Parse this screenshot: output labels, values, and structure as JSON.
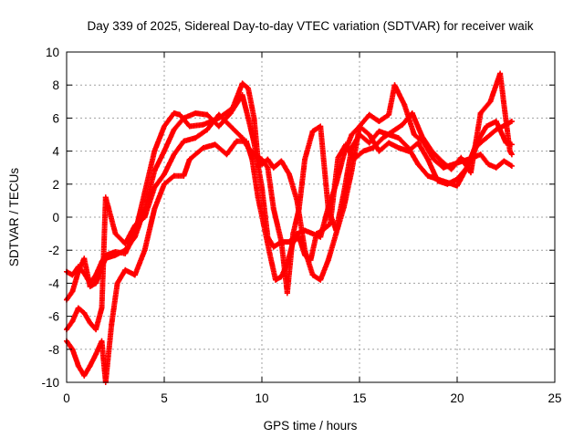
{
  "chart_data": {
    "type": "scatter",
    "title": "Day 339 of 2025, Sidereal Day-to-day VTEC variation (SDTVAR) for receiver waik",
    "xlabel": "GPS time / hours",
    "ylabel": "SDTVAR / TECUs",
    "xlim": [
      0,
      25
    ],
    "ylim": [
      -10,
      10
    ],
    "xticks": [
      "0",
      "5",
      "10",
      "15",
      "20",
      "25"
    ],
    "yticks": [
      "-10",
      "-8",
      "-6",
      "-4",
      "-2",
      "0",
      "2",
      "4",
      "6",
      "8",
      "10"
    ],
    "grid": true,
    "legend": "none",
    "marker": "plus",
    "color": "#ff0000",
    "series": [
      {
        "x": [
          0.0,
          0.3,
          0.6,
          0.9,
          1.2,
          1.5,
          1.8,
          2.0,
          2.5,
          3.0,
          3.5,
          4.0,
          4.5,
          5.0,
          5.5,
          5.8,
          6.3,
          7.0,
          7.8,
          8.5,
          9.0,
          9.3,
          9.6,
          9.8,
          10.0,
          10.3,
          10.6,
          11.0,
          11.4,
          11.8,
          12.2,
          12.6,
          13.0,
          13.4,
          13.8,
          14.2,
          14.6,
          15.0,
          15.5,
          16.0,
          16.5,
          16.8,
          17.3,
          17.8,
          18.3,
          18.8,
          19.3,
          19.8,
          20.3,
          20.8,
          21.2,
          21.6,
          22.0,
          22.4,
          22.8
        ],
        "y": [
          -3.3,
          -3.5,
          -3.0,
          -3.4,
          -4.0,
          -3.5,
          -2.7,
          -2.3,
          -2.1,
          -2.2,
          -1.0,
          1.5,
          4.0,
          5.5,
          6.3,
          6.2,
          5.5,
          5.6,
          6.0,
          6.6,
          8.1,
          7.8,
          6.0,
          3.5,
          3.2,
          3.5,
          3.0,
          3.4,
          2.6,
          1.0,
          -2.0,
          -3.5,
          -3.8,
          -2.6,
          -1.0,
          0.6,
          2.8,
          5.5,
          6.2,
          5.8,
          6.2,
          8.0,
          6.8,
          5.0,
          4.5,
          3.5,
          3.0,
          3.2,
          3.4,
          3.6,
          3.8,
          3.2,
          3.0,
          3.4,
          3.1
        ]
      },
      {
        "x": [
          0.0,
          0.3,
          0.6,
          0.9,
          1.2,
          1.5,
          1.8,
          2.0,
          2.5,
          3.0,
          3.5,
          4.0,
          4.5,
          5.0,
          5.5,
          6.0,
          6.6,
          7.2,
          7.8,
          8.4,
          9.0,
          9.3,
          9.6,
          10.0,
          10.3,
          10.6,
          11.0,
          11.4,
          11.8,
          12.2,
          12.6,
          13.0,
          13.4,
          13.8,
          14.2,
          14.6,
          15.0,
          15.5,
          16.0,
          16.5,
          17.0,
          17.5,
          18.0,
          18.5,
          19.0,
          19.5,
          20.0,
          20.5,
          21.0,
          21.5,
          22.0,
          22.5,
          22.8
        ],
        "y": [
          -5.0,
          -4.5,
          -3.3,
          -2.5,
          -4.2,
          -4.0,
          -3.0,
          -2.5,
          -2.3,
          -2.0,
          -1.2,
          0.5,
          2.8,
          4.0,
          5.3,
          6.0,
          6.3,
          6.2,
          5.5,
          6.3,
          7.4,
          6.0,
          4.5,
          1.8,
          -1.2,
          -1.8,
          -1.5,
          -1.5,
          -1.0,
          -0.8,
          -1.0,
          -1.2,
          0.6,
          2.0,
          3.8,
          5.0,
          5.5,
          5.0,
          4.0,
          4.5,
          4.2,
          4.0,
          4.5,
          3.5,
          2.2,
          2.0,
          2.3,
          3.0,
          4.3,
          4.8,
          5.3,
          5.6,
          5.8
        ]
      },
      {
        "x": [
          0.0,
          0.3,
          0.6,
          0.9,
          1.2,
          1.5,
          1.8,
          2.0,
          2.5,
          3.0,
          3.5,
          4.0,
          4.5,
          5.0,
          5.5,
          6.0,
          6.6,
          7.2,
          7.8,
          8.4,
          9.0,
          9.3,
          9.6,
          10.0,
          10.3,
          10.6,
          11.0,
          11.3,
          11.6,
          11.9,
          12.2,
          12.6,
          13.0,
          13.4,
          13.8,
          14.2,
          14.6,
          15.0,
          15.5,
          16.0,
          16.5,
          17.0,
          17.5,
          18.0,
          18.5,
          19.0,
          19.5,
          20.0,
          20.5,
          21.0,
          21.5,
          22.0,
          22.5,
          22.8
        ],
        "y": [
          -6.8,
          -6.3,
          -5.5,
          -5.8,
          -6.4,
          -6.8,
          -5.5,
          1.2,
          -1.0,
          -1.6,
          -0.5,
          0.0,
          1.8,
          2.6,
          3.8,
          4.6,
          4.8,
          5.3,
          6.2,
          5.5,
          4.8,
          4.2,
          3.8,
          3.5,
          3.0,
          0.5,
          -1.5,
          -4.6,
          -1.0,
          0.5,
          3.5,
          5.2,
          5.5,
          0.5,
          -0.8,
          1.5,
          4.2,
          5.0,
          4.5,
          5.2,
          5.0,
          4.8,
          4.2,
          3.2,
          2.5,
          2.3,
          2.1,
          1.9,
          3.0,
          4.5,
          5.5,
          5.8,
          4.5,
          4.4
        ]
      },
      {
        "x": [
          0.0,
          0.3,
          0.6,
          0.9,
          1.2,
          1.5,
          1.8,
          2.0,
          2.3,
          2.6,
          3.0,
          3.5,
          4.0,
          4.5,
          5.0,
          5.5,
          6.0,
          6.3,
          7.0,
          7.6,
          8.2,
          8.7,
          9.2,
          9.5,
          9.8,
          10.1,
          10.4,
          10.7,
          11.0,
          11.3,
          11.6,
          11.9,
          12.2,
          12.5,
          12.8,
          13.1,
          13.5,
          13.9,
          14.3,
          14.7,
          15.2,
          15.7,
          16.2,
          16.7,
          17.2,
          17.7,
          18.2,
          18.7,
          19.2,
          19.7,
          20.2,
          20.7,
          21.2,
          21.7,
          22.2,
          22.7,
          22.8
        ],
        "y": [
          -7.5,
          -8.0,
          -9.0,
          -9.6,
          -9.0,
          -8.3,
          -7.5,
          -10.0,
          -6.5,
          -4.0,
          -3.2,
          -3.5,
          -2.0,
          0.5,
          2.0,
          2.5,
          2.5,
          3.5,
          4.2,
          4.4,
          3.8,
          4.6,
          4.6,
          3.5,
          1.2,
          -0.5,
          -2.2,
          -3.8,
          -3.6,
          -2.8,
          -1.5,
          -1.2,
          -2.3,
          -2.6,
          -1.0,
          -0.8,
          -0.4,
          3.6,
          4.4,
          3.5,
          4.0,
          4.2,
          4.8,
          5.2,
          5.6,
          6.3,
          4.9,
          4.0,
          3.4,
          2.9,
          3.6,
          2.7,
          6.3,
          7.0,
          8.7,
          4.0,
          3.8
        ]
      }
    ]
  }
}
